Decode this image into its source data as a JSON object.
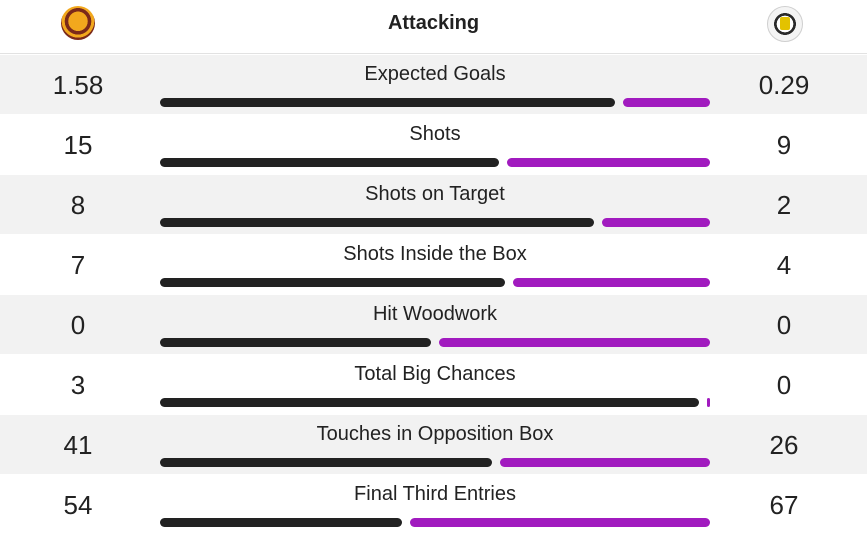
{
  "header": {
    "title": "Attacking",
    "home_crest": "motherwell-crest-icon",
    "away_crest": "st-mirren-crest-icon"
  },
  "colors": {
    "home": "#222222",
    "away": "#a11bbf",
    "alt_row": "#f2f2f2"
  },
  "stats": [
    {
      "label": "Expected Goals",
      "home": "1.58",
      "away": "0.29",
      "home_share": 0.84
    },
    {
      "label": "Shots",
      "home": "15",
      "away": "9",
      "home_share": 0.625
    },
    {
      "label": "Shots on Target",
      "home": "8",
      "away": "2",
      "home_share": 0.8
    },
    {
      "label": "Shots Inside the Box",
      "home": "7",
      "away": "4",
      "home_share": 0.636
    },
    {
      "label": "Hit Woodwork",
      "home": "0",
      "away": "0",
      "home_share": 0.5
    },
    {
      "label": "Total Big Chances",
      "home": "3",
      "away": "0",
      "home_share": 1.0
    },
    {
      "label": "Touches in Opposition Box",
      "home": "41",
      "away": "26",
      "home_share": 0.612
    },
    {
      "label": "Final Third Entries",
      "home": "54",
      "away": "67",
      "home_share": 0.446
    }
  ]
}
